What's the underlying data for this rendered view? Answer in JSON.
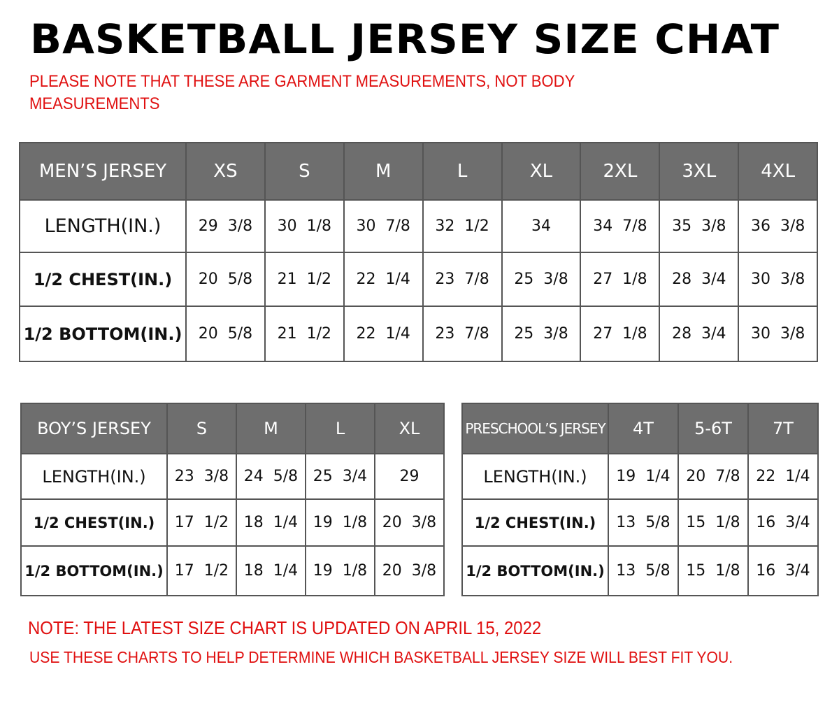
{
  "title": "BASKETBALL JERSEY SIZE CHAT",
  "subtitle": "PLEASE NOTE THAT THESE ARE GARMENT MEASUREMENTS, NOT BODY MEASUREMENTS",
  "colors": {
    "header_bg": "#6e6e6e",
    "note": "#e01010"
  },
  "mens": {
    "header": "MEN’S JERSEY",
    "sizes": [
      "XS",
      "S",
      "M",
      "L",
      "XL",
      "2XL",
      "3XL",
      "4XL"
    ],
    "rows": [
      {
        "label": "LENGTH(IN.)",
        "values": [
          "29  3/8",
          "30  1/8",
          "30  7/8",
          "32  1/2",
          "34",
          "34  7/8",
          "35  3/8",
          "36  3/8"
        ]
      },
      {
        "label": "1/2  CHEST(IN.)",
        "values": [
          "20  5/8",
          "21  1/2",
          "22  1/4",
          "23  7/8",
          "25  3/8",
          "27  1/8",
          "28  3/4",
          "30  3/8"
        ]
      },
      {
        "label": "1/2  BOTTOM(IN.)",
        "values": [
          "20  5/8",
          "21  1/2",
          "22  1/4",
          "23  7/8",
          "25  3/8",
          "27  1/8",
          "28  3/4",
          "30  3/8"
        ]
      }
    ]
  },
  "boys": {
    "header": "BOY’S JERSEY",
    "sizes": [
      "S",
      "M",
      "L",
      "XL"
    ],
    "rows": [
      {
        "label": "LENGTH(IN.)",
        "values": [
          "23  3/8",
          "24  5/8",
          "25  3/4",
          "29"
        ]
      },
      {
        "label": "1/2  CHEST(IN.)",
        "values": [
          "17  1/2",
          "18  1/4",
          "19  1/8",
          "20  3/8"
        ]
      },
      {
        "label": "1/2  BOTTOM(IN.)",
        "values": [
          "17  1/2",
          "18  1/4",
          "19  1/8",
          "20  3/8"
        ]
      }
    ]
  },
  "preschool": {
    "header": "PRESCHOOL’S JERSEY",
    "sizes": [
      "4T",
      "5-6T",
      "7T"
    ],
    "rows": [
      {
        "label": "LENGTH(IN.)",
        "values": [
          "19  1/4",
          "20  7/8",
          "22  1/4"
        ]
      },
      {
        "label": "1/2  CHEST(IN.)",
        "values": [
          "13  5/8",
          "15  1/8",
          "16  3/4"
        ]
      },
      {
        "label": "1/2  BOTTOM(IN.)",
        "values": [
          "13  5/8",
          "15  1/8",
          "16  3/4"
        ]
      }
    ]
  },
  "footer": {
    "updated": "NOTE: THE LATEST SIZE CHART IS UPDATED ON APRIL 15, 2022",
    "usage": "USE THESE CHARTS TO HELP DETERMINE WHICH  BASKETBALL JERSEY  SIZE WILL BEST FIT YOU."
  }
}
